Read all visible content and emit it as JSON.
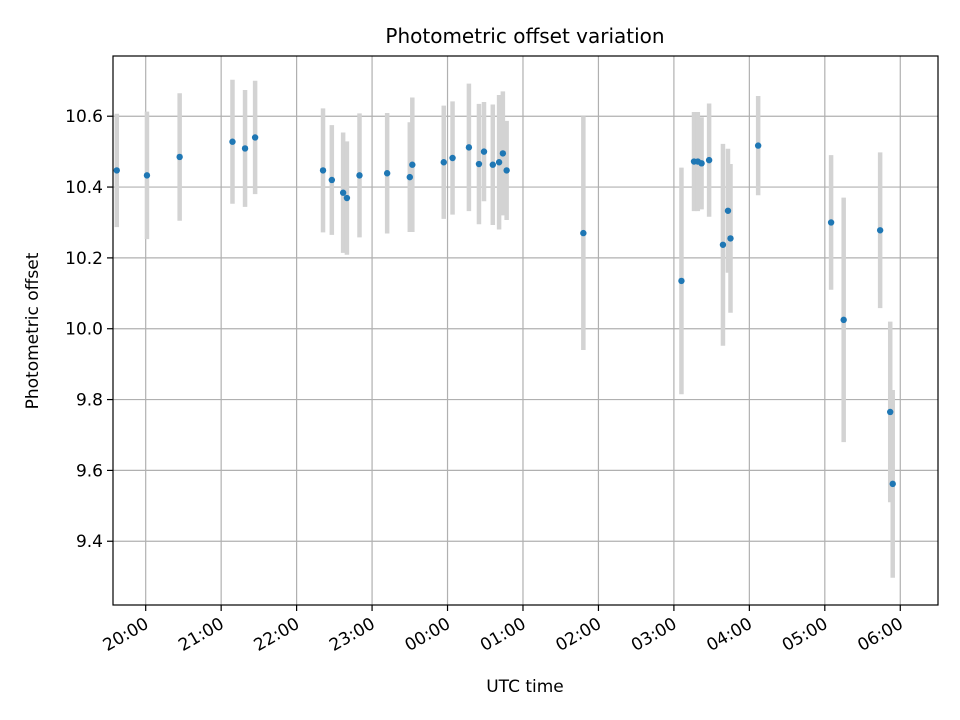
{
  "chart_data": {
    "type": "scatter",
    "title": "Photometric offset variation",
    "xlabel": "UTC time",
    "ylabel": "Photometric offset",
    "grid": true,
    "xlim": [
      "19:34",
      "06:30"
    ],
    "ylim": [
      9.22,
      10.77
    ],
    "xticks": [
      "20:00",
      "21:00",
      "22:00",
      "23:00",
      "00:00",
      "01:00",
      "02:00",
      "03:00",
      "04:00",
      "05:00",
      "06:00"
    ],
    "yticks": [
      "9.4",
      "9.6",
      "9.8",
      "10.0",
      "10.2",
      "10.4",
      "10.6"
    ],
    "colors": {
      "marker": "#1f77b4",
      "errorbar": "#d3d3d3",
      "grid": "#b0b0b0"
    },
    "points": [
      {
        "x": "19:37",
        "y": 10.447,
        "err": 0.16
      },
      {
        "x": "20:01",
        "y": 10.433,
        "err": 0.18
      },
      {
        "x": "20:27",
        "y": 10.485,
        "err": 0.18
      },
      {
        "x": "21:09",
        "y": 10.528,
        "err": 0.175
      },
      {
        "x": "21:19",
        "y": 10.509,
        "err": 0.165
      },
      {
        "x": "21:27",
        "y": 10.54,
        "err": 0.16
      },
      {
        "x": "22:21",
        "y": 10.447,
        "err": 0.175
      },
      {
        "x": "22:28",
        "y": 10.42,
        "err": 0.155
      },
      {
        "x": "22:37",
        "y": 10.384,
        "err": 0.17
      },
      {
        "x": "22:40",
        "y": 10.369,
        "err": 0.16
      },
      {
        "x": "22:50",
        "y": 10.433,
        "err": 0.175
      },
      {
        "x": "23:12",
        "y": 10.439,
        "err": 0.17
      },
      {
        "x": "23:30",
        "y": 10.428,
        "err": 0.155
      },
      {
        "x": "23:32",
        "y": 10.463,
        "err": 0.19
      },
      {
        "x": "23:57",
        "y": 10.47,
        "err": 0.16
      },
      {
        "x": "00:04",
        "y": 10.482,
        "err": 0.16
      },
      {
        "x": "00:17",
        "y": 10.512,
        "err": 0.18
      },
      {
        "x": "00:25",
        "y": 10.465,
        "err": 0.17
      },
      {
        "x": "00:29",
        "y": 10.5,
        "err": 0.14
      },
      {
        "x": "00:36",
        "y": 10.463,
        "err": 0.17
      },
      {
        "x": "00:41",
        "y": 10.47,
        "err": 0.19
      },
      {
        "x": "00:44",
        "y": 10.495,
        "err": 0.175
      },
      {
        "x": "00:47",
        "y": 10.447,
        "err": 0.14
      },
      {
        "x": "01:48",
        "y": 10.27,
        "err": 0.33
      },
      {
        "x": "03:06",
        "y": 10.135,
        "err": 0.32
      },
      {
        "x": "03:16",
        "y": 10.472,
        "err": 0.14
      },
      {
        "x": "03:19",
        "y": 10.472,
        "err": 0.14
      },
      {
        "x": "03:22",
        "y": 10.467,
        "err": 0.13
      },
      {
        "x": "03:28",
        "y": 10.476,
        "err": 0.16
      },
      {
        "x": "03:39",
        "y": 10.237,
        "err": 0.285
      },
      {
        "x": "03:43",
        "y": 10.333,
        "err": 0.175
      },
      {
        "x": "03:45",
        "y": 10.255,
        "err": 0.21
      },
      {
        "x": "04:07",
        "y": 10.517,
        "err": 0.14
      },
      {
        "x": "05:05",
        "y": 10.3,
        "err": 0.19
      },
      {
        "x": "05:15",
        "y": 10.025,
        "err": 0.345
      },
      {
        "x": "05:44",
        "y": 10.278,
        "err": 0.22
      },
      {
        "x": "05:52",
        "y": 9.765,
        "err": 0.255
      },
      {
        "x": "05:54",
        "y": 9.562,
        "err": 0.265
      }
    ]
  }
}
